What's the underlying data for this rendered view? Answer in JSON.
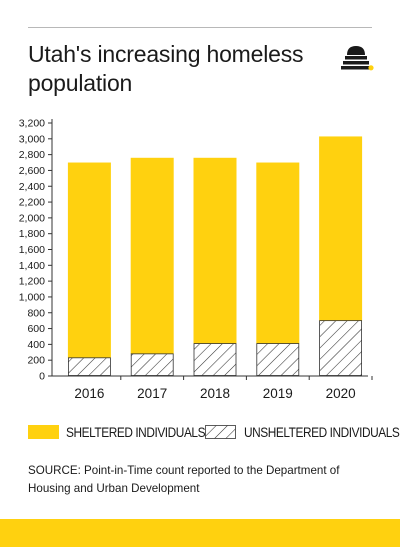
{
  "title": "Utah's increasing homeless population",
  "source": "SOURCE: Point-in-Time count reported to the Department of Housing and Urban Development",
  "logo": {
    "icon": "beehive-icon",
    "dot_color": "#ffd10f"
  },
  "colors": {
    "sheltered": "#ffd10f",
    "unsheltered_hatch": "#333333",
    "background": "#ffffff"
  },
  "chart_data": {
    "type": "bar",
    "stacked": true,
    "categories": [
      "2016",
      "2017",
      "2018",
      "2019",
      "2020"
    ],
    "series": [
      {
        "name": "UNSHELTERED INDIVIDUALS",
        "values": [
          230,
          280,
          410,
          410,
          700
        ],
        "style": "hatched"
      },
      {
        "name": "SHELTERED INDIVIDUALS",
        "values": [
          2470,
          2480,
          2350,
          2290,
          2330
        ],
        "style": "solid"
      }
    ],
    "totals": [
      2700,
      2760,
      2760,
      2700,
      3030
    ],
    "yticks": [
      0,
      200,
      400,
      600,
      800,
      "1,000",
      "1,200",
      "1,400",
      "1,600",
      "1,800",
      "2,000",
      "2,200",
      "2,400",
      "2,600",
      "2,800",
      "3,000",
      "3,200"
    ],
    "ylim": [
      0,
      3200
    ],
    "title": "Utah's increasing homeless population",
    "xlabel": "",
    "ylabel": "",
    "grid": false,
    "legend_position": "bottom"
  }
}
